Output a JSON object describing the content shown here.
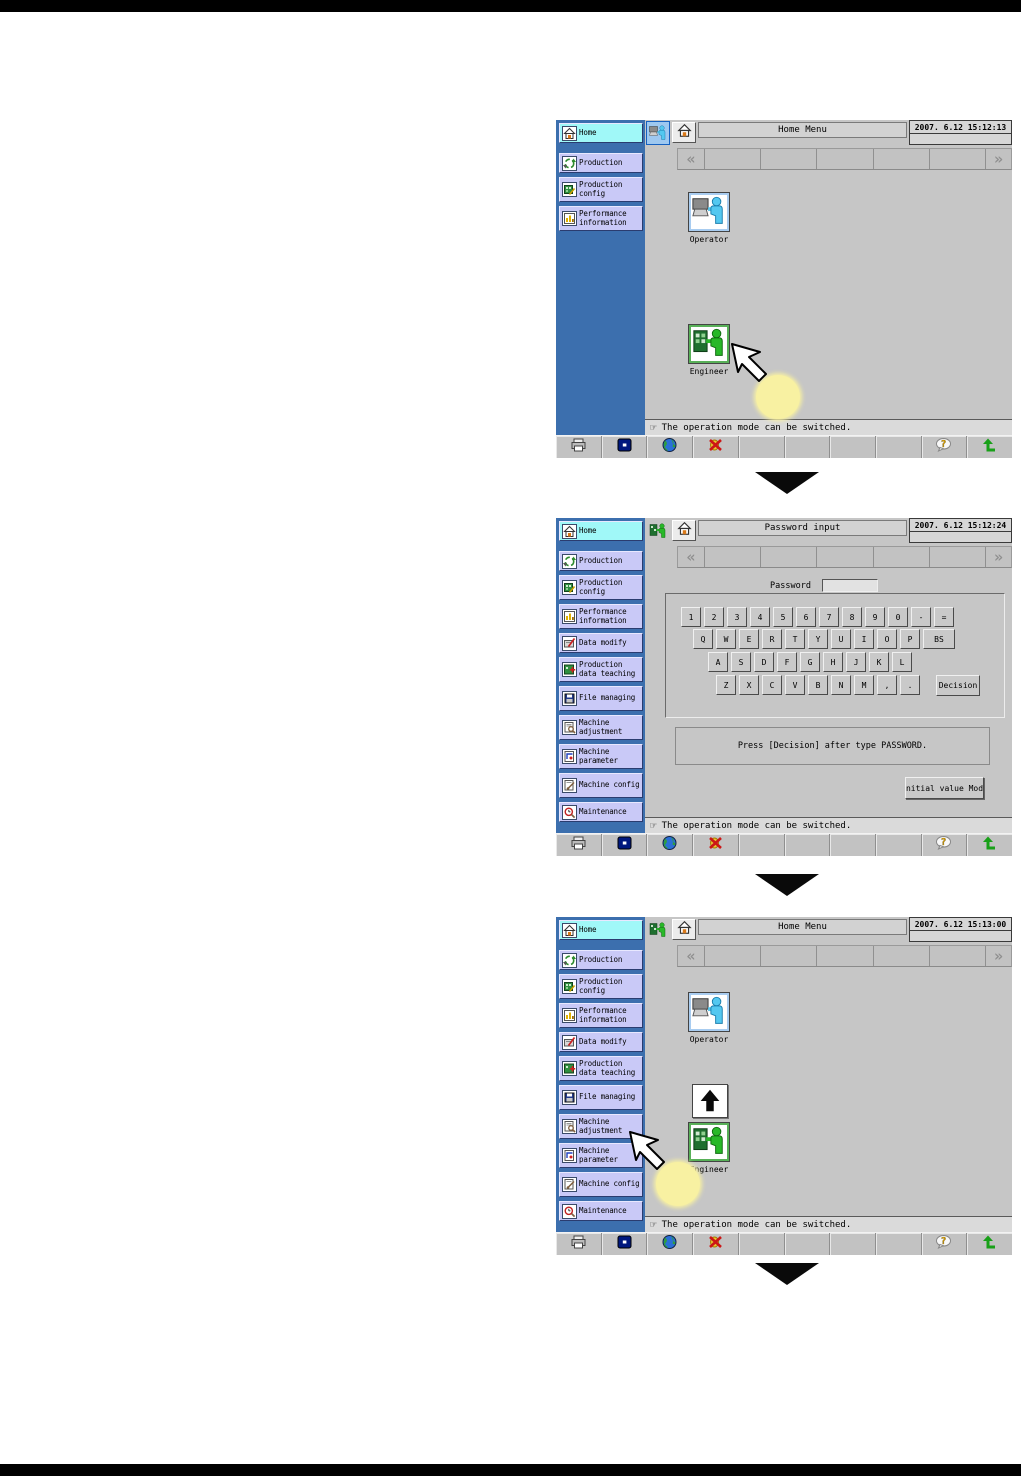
{
  "colors": {
    "sidebar_bg": "#3c6fae",
    "sidebar_item": "#c9c9f7",
    "sidebar_active": "#a0f8f8",
    "main_bg": "#c6c6c6",
    "status_bg": "#dadada",
    "toolbar_bg": "#c2c2c2",
    "highlight_circle": "#f8f1a2",
    "operator_accent": "#54c8f0",
    "engineer_accent": "#28b828"
  },
  "sidebar": {
    "items": [
      {
        "label": "Home",
        "icon": "home-icon",
        "lines": 1
      },
      {
        "label": "Production",
        "icon": "production-icon",
        "lines": 1
      },
      {
        "label": "Production config",
        "icon": "production-config-icon",
        "lines": 2
      },
      {
        "label": "Performance information",
        "icon": "performance-information-icon",
        "lines": 2
      },
      {
        "label": "Data modify",
        "icon": "data-modify-icon",
        "lines": 1
      },
      {
        "label": "Production data teaching",
        "icon": "production-data-teaching-icon",
        "lines": 2
      },
      {
        "label": "File managing",
        "icon": "file-managing-icon",
        "lines": 2
      },
      {
        "label": "Machine adjustment",
        "icon": "machine-adjustment-icon",
        "lines": 2
      },
      {
        "label": "Machine parameter",
        "icon": "machine-parameter-icon",
        "lines": 2
      },
      {
        "label": "Machine config",
        "icon": "machine-config-icon",
        "lines": 2
      },
      {
        "label": "Maintenance",
        "icon": "maintenance-icon",
        "lines": 1
      }
    ]
  },
  "nav": {
    "left_arrow": "«",
    "right_arrow": "»",
    "blank_cells": 5
  },
  "statusbar": {
    "hand": "☞"
  },
  "toolbar": {
    "cells": [
      "printer-icon",
      "display-icon",
      "globe-icon",
      "buzzer-stop-icon",
      "",
      "",
      "",
      "",
      "help-icon",
      "return-icon"
    ]
  },
  "panels": [
    {
      "title": "Home Menu",
      "datetime": "2007. 6.12 15:12:13",
      "mode_icon": "operator-mode-icon",
      "sidebar_count": 4,
      "status": "The operation mode can be switched.",
      "tiles": [
        {
          "label": "Operator"
        },
        {
          "label": "Engineer"
        }
      ]
    },
    {
      "title": "Password input",
      "datetime": "2007. 6.12 15:12:24",
      "mode_icon": "engineer-mode-icon",
      "sidebar_count": 11,
      "status": "The operation mode can be switched.",
      "password": {
        "label": "Password",
        "value": ""
      },
      "keyboard": {
        "rows": [
          [
            "1",
            "2",
            "3",
            "4",
            "5",
            "6",
            "7",
            "8",
            "9",
            "0",
            "-",
            "="
          ],
          [
            "Q",
            "W",
            "E",
            "R",
            "T",
            "Y",
            "U",
            "I",
            "O",
            "P",
            "BS"
          ],
          [
            "A",
            "S",
            "D",
            "F",
            "G",
            "H",
            "J",
            "K",
            "L"
          ],
          [
            "Z",
            "X",
            "C",
            "V",
            "B",
            "N",
            "M",
            ",",
            "."
          ]
        ],
        "decision": "Decision"
      },
      "message": "Press [Decision] after type PASSWORD.",
      "initial_button": "nitial value Mod"
    },
    {
      "title": "Home Menu",
      "datetime": "2007. 6.12 15:13:00",
      "mode_icon": "engineer-mode-icon",
      "sidebar_count": 11,
      "status": "The operation mode can be switched.",
      "tiles": [
        {
          "label": "Operator"
        },
        {
          "label": "Engineer"
        }
      ]
    }
  ]
}
